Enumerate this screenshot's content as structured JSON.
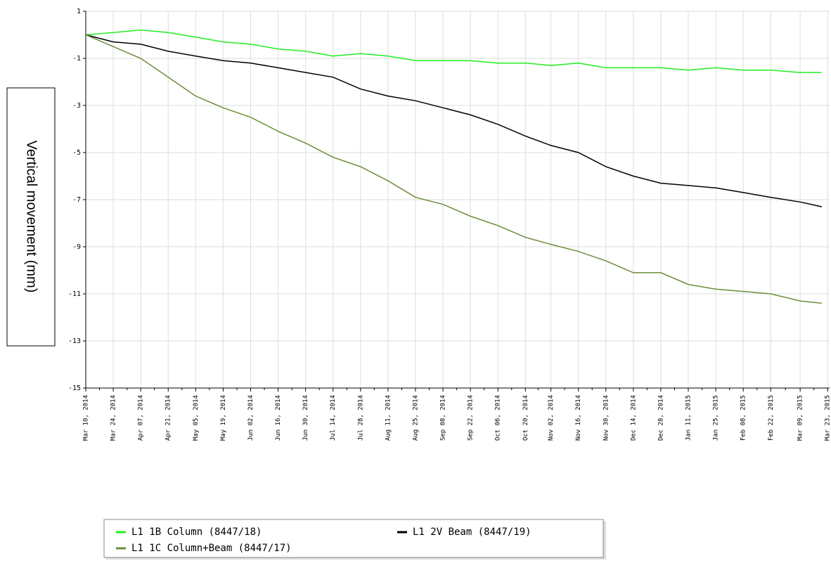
{
  "chart_data": {
    "type": "line",
    "y_label": "Vertical movement (mm)",
    "x": [
      "2014-03-10",
      "2014-03-24",
      "2014-04-07",
      "2014-04-21",
      "2014-05-05",
      "2014-05-19",
      "2014-06-02",
      "2014-06-16",
      "2014-06-30",
      "2014-07-14",
      "2014-07-28",
      "2014-08-11",
      "2014-08-25",
      "2014-09-08",
      "2014-09-22",
      "2014-10-06",
      "2014-10-20",
      "2014-11-02",
      "2014-11-16",
      "2014-11-30",
      "2014-12-14",
      "2014-12-28",
      "2015-01-11",
      "2015-01-25",
      "2015-02-08",
      "2015-02-22",
      "2015-03-09",
      "2015-03-20"
    ],
    "series": [
      {
        "name": "L1 1B Column (8447/18)",
        "color": "#22ee22",
        "values": [
          0,
          0.1,
          0.2,
          0.1,
          -0.1,
          -0.3,
          -0.4,
          -0.6,
          -0.7,
          -0.9,
          -0.8,
          -0.9,
          -1.1,
          -1.1,
          -1.1,
          -1.2,
          -1.2,
          -1.3,
          -1.2,
          -1.4,
          -1.4,
          -1.4,
          -1.5,
          -1.4,
          -1.5,
          -1.5,
          -1.6,
          -1.6
        ]
      },
      {
        "name": "L1 2V Beam (8447/19)",
        "color": "#000000",
        "values": [
          0,
          -0.3,
          -0.4,
          -0.7,
          -0.9,
          -1.1,
          -1.2,
          -1.4,
          -1.6,
          -1.8,
          -2.3,
          -2.6,
          -2.8,
          -3.1,
          -3.4,
          -3.8,
          -4.3,
          -4.7,
          -5.0,
          -5.6,
          -6.0,
          -6.3,
          -6.4,
          -6.5,
          -6.7,
          -6.9,
          -7.1,
          -7.3
        ]
      },
      {
        "name": "L1 1C Column+Beam (8447/17)",
        "color": "#6b8e3a",
        "values": [
          0,
          -0.5,
          -1.0,
          -1.8,
          -2.6,
          -3.1,
          -3.5,
          -4.1,
          -4.6,
          -5.2,
          -5.6,
          -6.2,
          -6.9,
          -7.2,
          -7.7,
          -8.1,
          -8.6,
          -8.9,
          -9.2,
          -9.6,
          -10.1,
          -10.1,
          -10.6,
          -10.8,
          -10.9,
          -11.0,
          -11.3,
          -11.4
        ]
      }
    ],
    "xlim": [
      "2014-03-10",
      "2015-03-24"
    ],
    "xticks": [
      {
        "value": "2014-03-10",
        "label": "Mar 10, 2014"
      },
      {
        "value": "2014-03-24",
        "label": "Mar 24, 2014"
      },
      {
        "value": "2014-04-07",
        "label": "Apr 07, 2014"
      },
      {
        "value": "2014-04-21",
        "label": "Apr 21, 2014"
      },
      {
        "value": "2014-05-05",
        "label": "May 05, 2014"
      },
      {
        "value": "2014-05-19",
        "label": "May 19, 2014"
      },
      {
        "value": "2014-06-02",
        "label": "Jun 02, 2014"
      },
      {
        "value": "2014-06-16",
        "label": "Jun 16, 2014"
      },
      {
        "value": "2014-06-30",
        "label": "Jun 30, 2014"
      },
      {
        "value": "2014-07-14",
        "label": "Jul 14, 2014"
      },
      {
        "value": "2014-07-28",
        "label": "Jul 28, 2014"
      },
      {
        "value": "2014-08-11",
        "label": "Aug 11, 2014"
      },
      {
        "value": "2014-08-25",
        "label": "Aug 25, 2014"
      },
      {
        "value": "2014-09-08",
        "label": "Sep 08, 2014"
      },
      {
        "value": "2014-09-22",
        "label": "Sep 22, 2014"
      },
      {
        "value": "2014-10-06",
        "label": "Oct 06, 2014"
      },
      {
        "value": "2014-10-20",
        "label": "Oct 20, 2014"
      },
      {
        "value": "2014-11-02",
        "label": "Nov 02, 2014"
      },
      {
        "value": "2014-11-16",
        "label": "Nov 16, 2014"
      },
      {
        "value": "2014-11-30",
        "label": "Nov 30, 2014"
      },
      {
        "value": "2014-12-14",
        "label": "Dec 14, 2014"
      },
      {
        "value": "2014-12-28",
        "label": "Dec 28, 2014"
      },
      {
        "value": "2015-01-11",
        "label": "Jan 11, 2015"
      },
      {
        "value": "2015-01-25",
        "label": "Jan 25, 2015"
      },
      {
        "value": "2015-02-08",
        "label": "Feb 08, 2015"
      },
      {
        "value": "2015-02-22",
        "label": "Feb 22, 2015"
      },
      {
        "value": "2015-03-09",
        "label": "Mar 09, 2015"
      },
      {
        "value": "2015-03-23",
        "label": "Mar 23, 2015"
      }
    ],
    "ylim": [
      -15,
      1
    ],
    "yticks": [
      1,
      -1,
      -3,
      -5,
      -7,
      -9,
      -11,
      -13,
      -15
    ],
    "grid": true
  }
}
